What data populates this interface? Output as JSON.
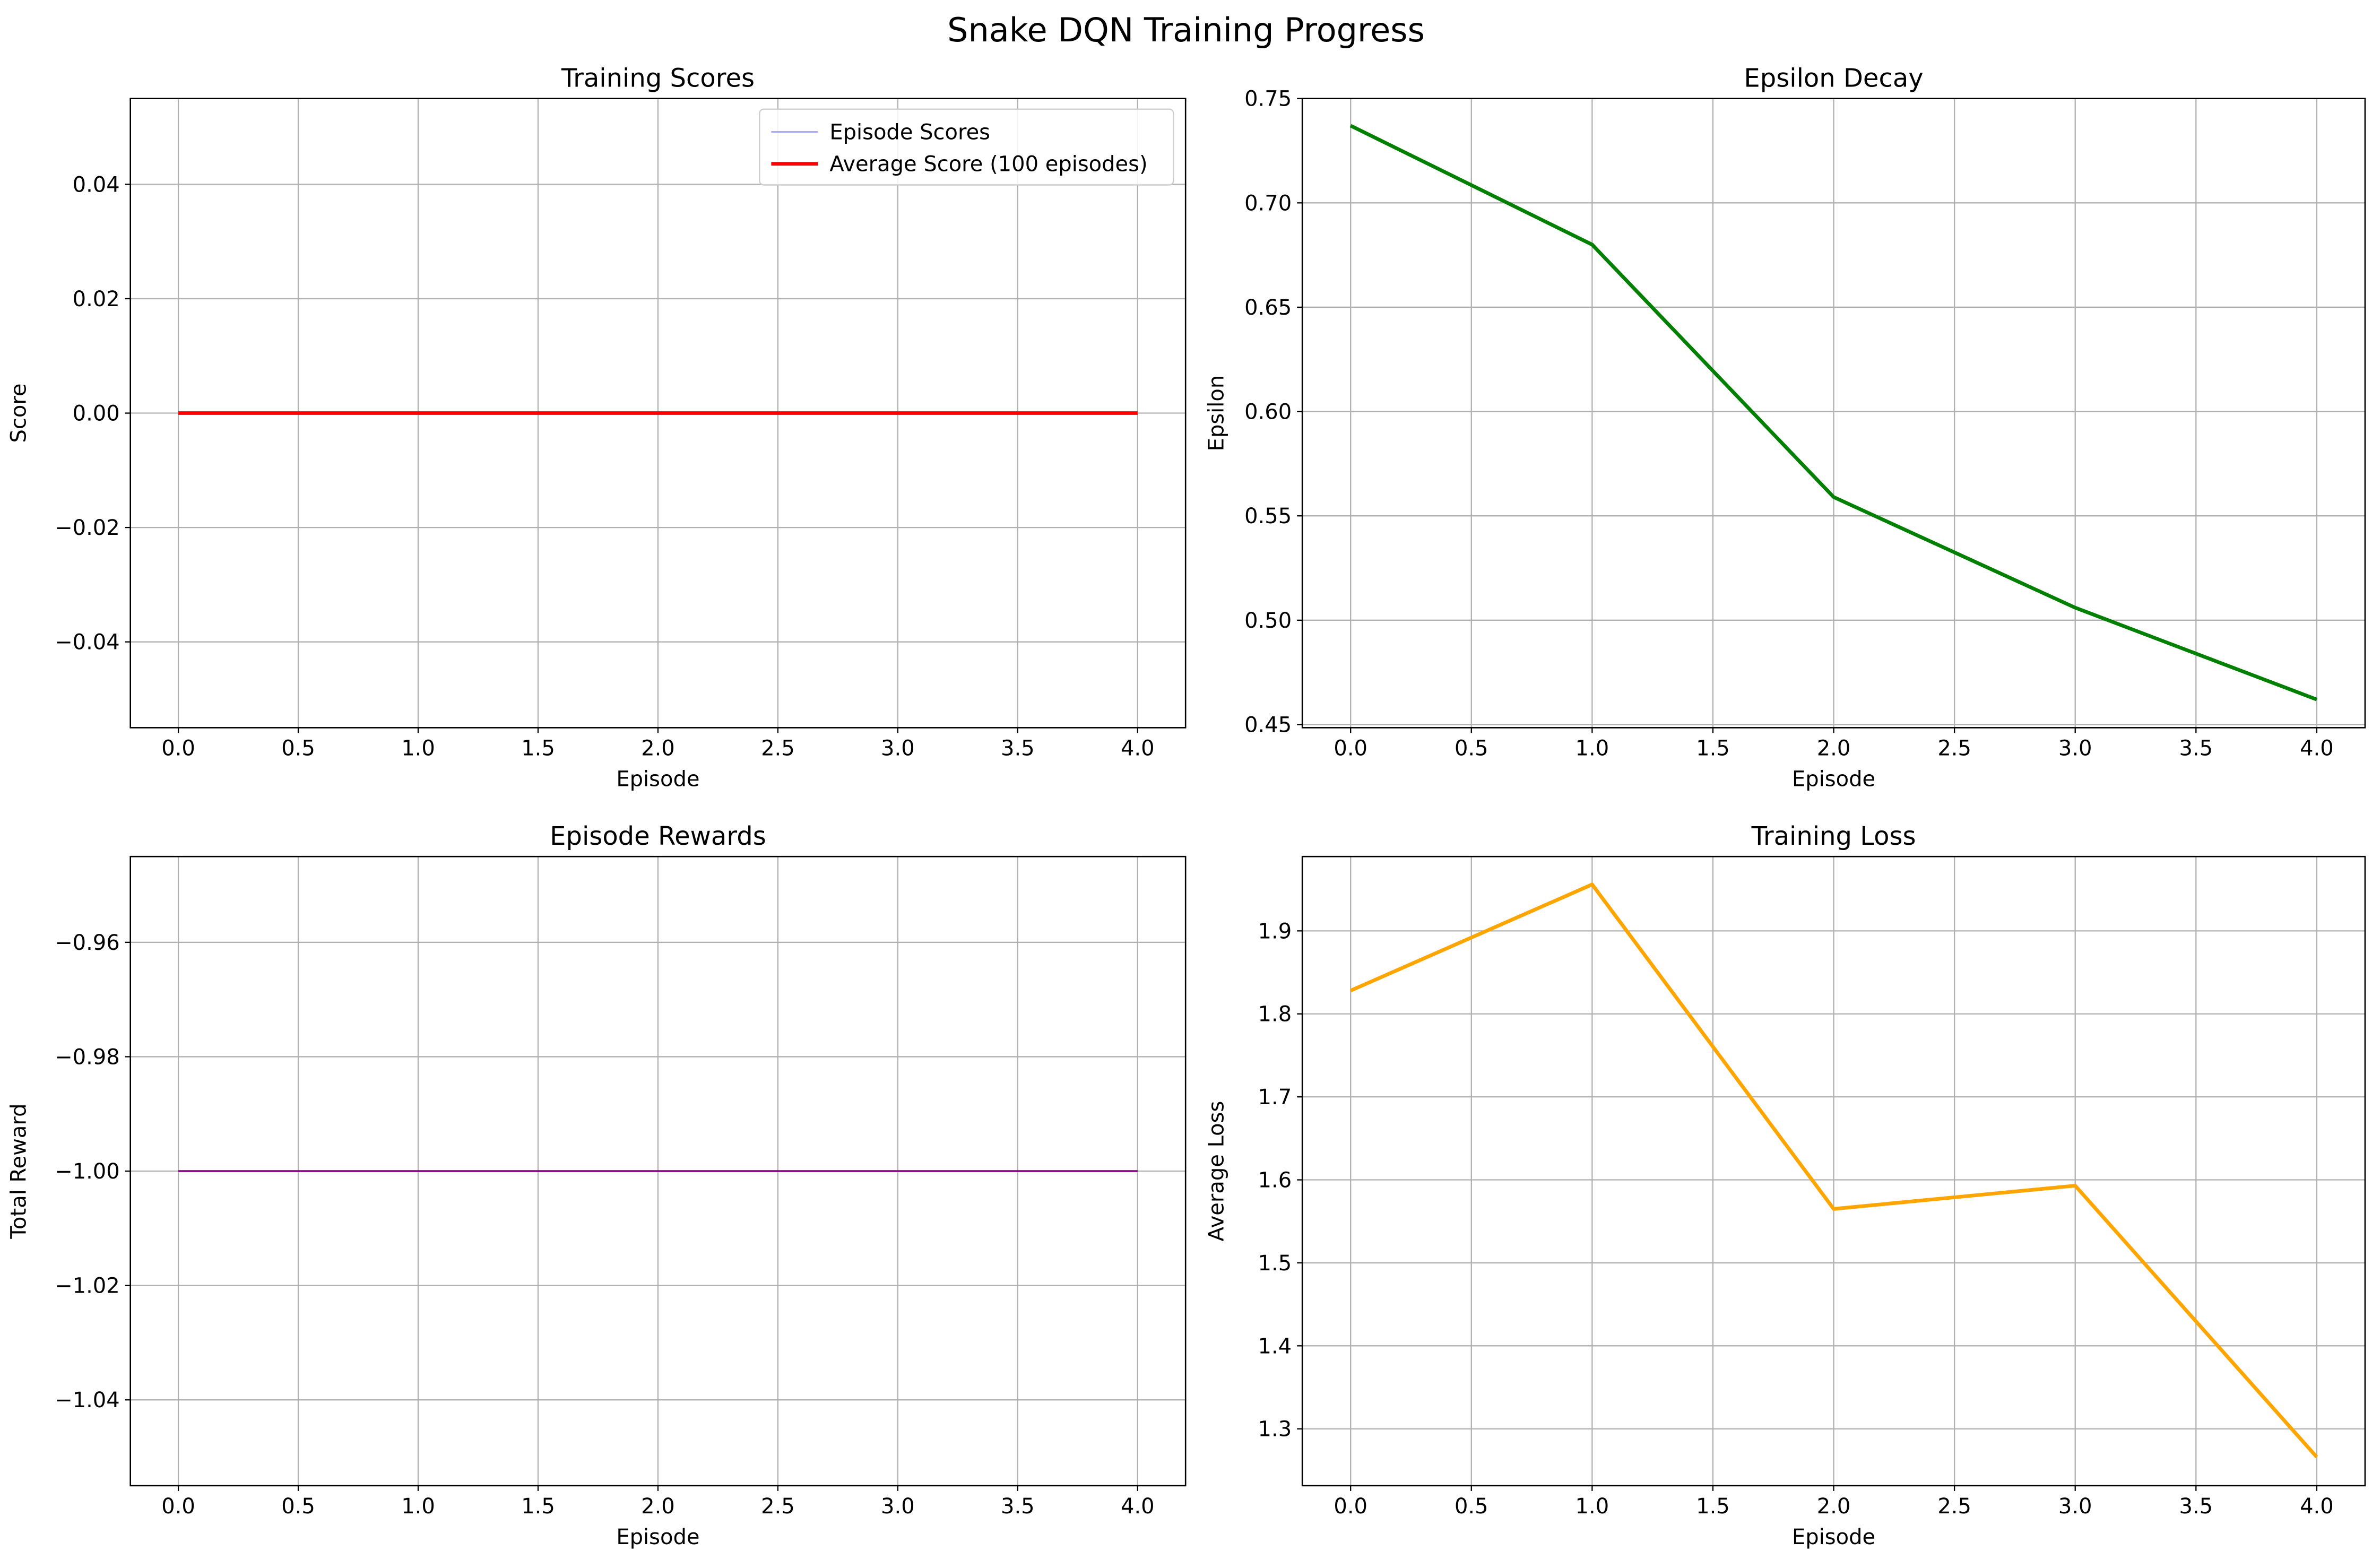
{
  "figure": {
    "title": "Snake DQN Training Progress"
  },
  "chart_data": [
    {
      "type": "line",
      "title": "Training Scores",
      "xlabel": "Episode",
      "ylabel": "Score",
      "xlim": [
        -0.2,
        4.2
      ],
      "ylim": [
        -0.055,
        0.055
      ],
      "x_ticks": [
        0.0,
        0.5,
        1.0,
        1.5,
        2.0,
        2.5,
        3.0,
        3.5,
        4.0
      ],
      "x_tick_labels": [
        "0.0",
        "0.5",
        "1.0",
        "1.5",
        "2.0",
        "2.5",
        "3.0",
        "3.5",
        "4.0"
      ],
      "y_ticks": [
        -0.04,
        -0.02,
        0.0,
        0.02,
        0.04
      ],
      "y_tick_labels": [
        "−0.04",
        "−0.02",
        "0.00",
        "0.02",
        "0.04"
      ],
      "grid": true,
      "legend_position": "upper right",
      "series": [
        {
          "name": "Episode Scores",
          "color": "#aaaaff",
          "line_width": 1.2,
          "x": [
            0,
            1,
            2,
            3,
            4
          ],
          "y": [
            0,
            0,
            0,
            0,
            0
          ]
        },
        {
          "name": "Average Score (100 episodes)",
          "color": "#ff0000",
          "line_width": 2.4,
          "x": [
            0,
            1,
            2,
            3,
            4
          ],
          "y": [
            0,
            0,
            0,
            0,
            0
          ]
        }
      ]
    },
    {
      "type": "line",
      "title": "Epsilon Decay",
      "xlabel": "Episode",
      "ylabel": "Epsilon",
      "xlim": [
        -0.2,
        4.2
      ],
      "ylim": [
        0.4485,
        0.75
      ],
      "x_ticks": [
        0.0,
        0.5,
        1.0,
        1.5,
        2.0,
        2.5,
        3.0,
        3.5,
        4.0
      ],
      "x_tick_labels": [
        "0.0",
        "0.5",
        "1.0",
        "1.5",
        "2.0",
        "2.5",
        "3.0",
        "3.5",
        "4.0"
      ],
      "y_ticks": [
        0.45,
        0.5,
        0.55,
        0.6,
        0.65,
        0.7,
        0.75
      ],
      "y_tick_labels": [
        "0.45",
        "0.50",
        "0.55",
        "0.60",
        "0.65",
        "0.70",
        "0.75"
      ],
      "grid": true,
      "series": [
        {
          "color": "#008000",
          "line_width": 2.4,
          "x": [
            0,
            1,
            2,
            3,
            4
          ],
          "y": [
            0.737,
            0.68,
            0.559,
            0.506,
            0.462
          ]
        }
      ]
    },
    {
      "type": "line",
      "title": "Episode Rewards",
      "xlabel": "Episode",
      "ylabel": "Total Reward",
      "xlim": [
        -0.2,
        4.2
      ],
      "ylim": [
        -1.055,
        -0.945
      ],
      "x_ticks": [
        0.0,
        0.5,
        1.0,
        1.5,
        2.0,
        2.5,
        3.0,
        3.5,
        4.0
      ],
      "x_tick_labels": [
        "0.0",
        "0.5",
        "1.0",
        "1.5",
        "2.0",
        "2.5",
        "3.0",
        "3.5",
        "4.0"
      ],
      "y_ticks": [
        -1.04,
        -1.02,
        -1.0,
        -0.98,
        -0.96
      ],
      "y_tick_labels": [
        "−1.04",
        "−1.02",
        "−1.00",
        "−0.98",
        "−0.96"
      ],
      "grid": true,
      "series": [
        {
          "color": "#800080",
          "line_width": 1.2,
          "x": [
            0,
            1,
            2,
            3,
            4
          ],
          "y": [
            -1,
            -1,
            -1,
            -1,
            -1
          ]
        }
      ]
    },
    {
      "type": "line",
      "title": "Training Loss",
      "xlabel": "Episode",
      "ylabel": "Average Loss",
      "xlim": [
        -0.2,
        4.2
      ],
      "ylim": [
        1.2315,
        1.9896
      ],
      "x_ticks": [
        0.0,
        0.5,
        1.0,
        1.5,
        2.0,
        2.5,
        3.0,
        3.5,
        4.0
      ],
      "x_tick_labels": [
        "0.0",
        "0.5",
        "1.0",
        "1.5",
        "2.0",
        "2.5",
        "3.0",
        "3.5",
        "4.0"
      ],
      "y_ticks": [
        1.3,
        1.4,
        1.5,
        1.6,
        1.7,
        1.8,
        1.9
      ],
      "y_tick_labels": [
        "1.3",
        "1.4",
        "1.5",
        "1.6",
        "1.7",
        "1.8",
        "1.9"
      ],
      "grid": true,
      "series": [
        {
          "color": "#ffa500",
          "line_width": 2.4,
          "x": [
            0,
            1,
            2,
            3,
            4
          ],
          "y": [
            1.828,
            1.956,
            1.565,
            1.593,
            1.266
          ]
        }
      ]
    }
  ]
}
